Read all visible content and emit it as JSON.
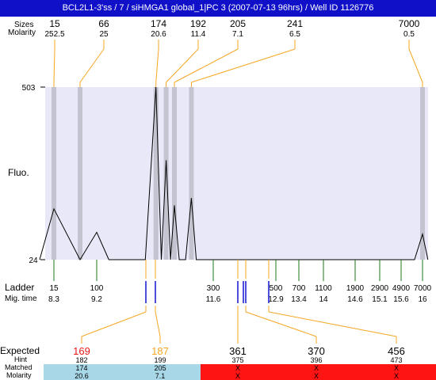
{
  "title": "BCL2L1-3'ss / 7 / siHMGA1 global_1|PC 3 (2007-07-13 96hrs) / Well ID 1126776",
  "colors": {
    "title_bg": "#0f10c8",
    "plot_bg": "#e8e8f8",
    "peak_band": "#c4c4d0",
    "connector_orange": "#f5a623",
    "ladder_tick_green": "#1a7a1a",
    "expected_tick_blue": "#1414d2",
    "expected_red": "#e81818",
    "expected_orange": "#f5a623",
    "matched_ok_bg": "#a8d8e8",
    "matched_fail_bg": "#ff1414"
  },
  "chart_data": {
    "type": "line",
    "row_labels": {
      "size": "Sizes",
      "molarity": "Molarity",
      "ladder": "Ladder",
      "mig_time": "Mig. time",
      "expected": "Expected",
      "hint": "Hint",
      "matched": "Matched",
      "molarity_bottom": "Molarity"
    },
    "ylabel": "Fluo.",
    "yticks": [
      "503",
      "24"
    ],
    "ylim": [
      24,
      503
    ],
    "top_peaks": [
      {
        "size": "15",
        "molarity": "252.5"
      },
      {
        "size": "66",
        "molarity": "25"
      },
      {
        "size": "174",
        "molarity": "20.6"
      },
      {
        "size": "192",
        "molarity": "11.4"
      },
      {
        "size": "205",
        "molarity": "7.1"
      },
      {
        "size": "241",
        "molarity": "6.5"
      },
      {
        "size": "7000",
        "molarity": "0.5"
      }
    ],
    "ladder": [
      {
        "size": "15",
        "time": "8.3"
      },
      {
        "size": "100",
        "time": "9.2"
      },
      {
        "size": "300",
        "time": "11.6"
      },
      {
        "size": "500",
        "time": "12.9"
      },
      {
        "size": "700",
        "time": "13.4"
      },
      {
        "size": "1100",
        "time": "14"
      },
      {
        "size": "1900",
        "time": "14.6"
      },
      {
        "size": "2900",
        "time": "15.1"
      },
      {
        "size": "4900",
        "time": "15.6"
      },
      {
        "size": "7000",
        "time": "16"
      }
    ],
    "expected": [
      {
        "value": "169",
        "hint": "182",
        "matched": "174",
        "molarity": "20.6",
        "status": "ok",
        "color": "red"
      },
      {
        "value": "187",
        "hint": "199",
        "matched": "205",
        "molarity": "7.1",
        "status": "ok",
        "color": "orange"
      },
      {
        "value": "361",
        "hint": "375",
        "matched": "X",
        "molarity": "X",
        "status": "fail",
        "color": "black"
      },
      {
        "value": "370",
        "hint": "396",
        "matched": "X",
        "molarity": "X",
        "status": "fail",
        "color": "black"
      },
      {
        "value": "456",
        "hint": "473",
        "matched": "X",
        "molarity": "X",
        "status": "fail",
        "color": "black"
      }
    ],
    "trace": {
      "x": [
        8.0,
        8.3,
        8.85,
        9.2,
        9.45,
        10.2,
        10.42,
        10.53,
        10.63,
        10.72,
        10.8,
        10.9,
        11.03,
        11.15,
        11.25,
        11.6,
        12.0,
        12.9,
        13.4,
        14.0,
        14.6,
        15.1,
        15.6,
        15.85,
        16.0,
        16.1
      ],
      "y": [
        24,
        165,
        24,
        100,
        24,
        24,
        503,
        24,
        300,
        24,
        175,
        24,
        24,
        195,
        24,
        24,
        24,
        24,
        24,
        24,
        24,
        24,
        24,
        24,
        95,
        24
      ]
    },
    "grid": false,
    "legend": "none"
  }
}
